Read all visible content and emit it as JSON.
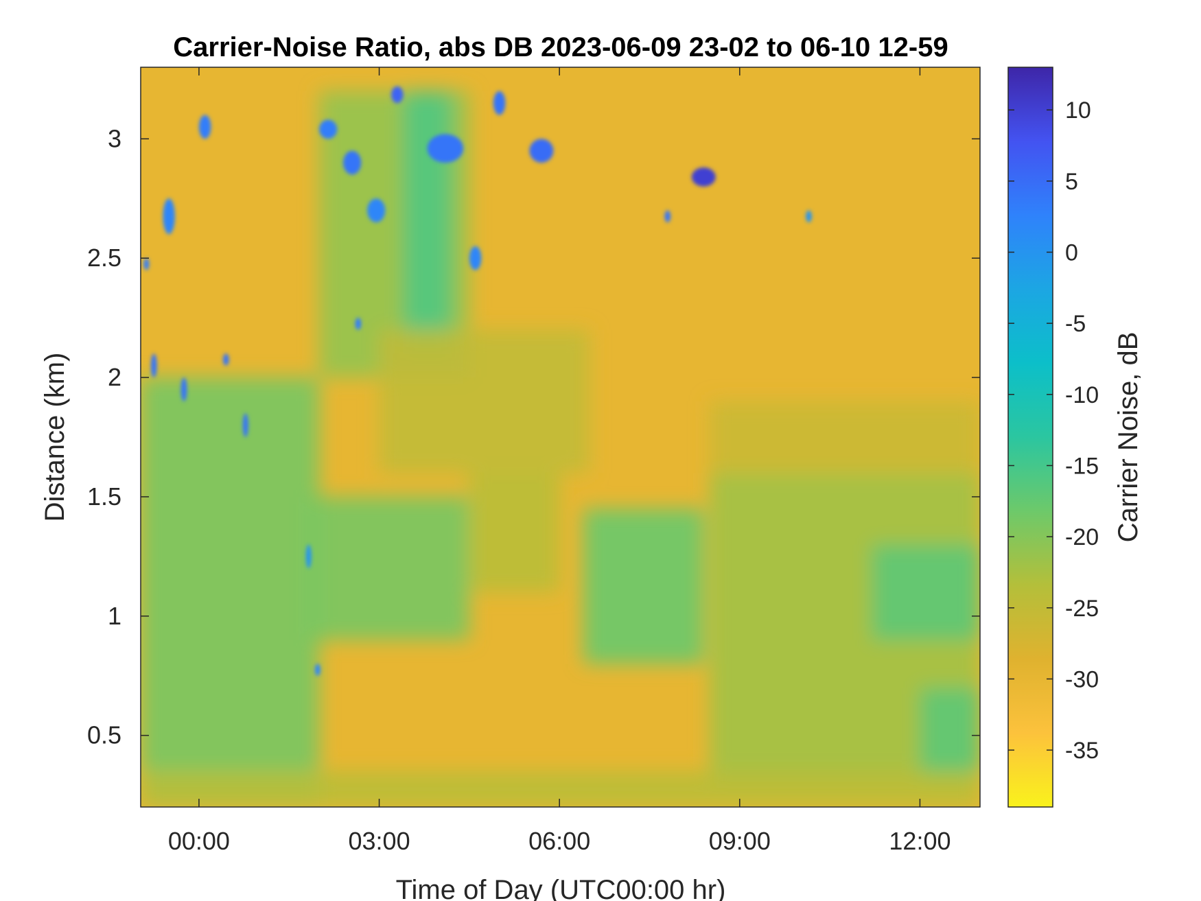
{
  "chart_data": {
    "type": "heatmap",
    "title": "Carrier-Noise Ratio, abs DB 2023-06-09 23-02 to 06-10 12-59",
    "xlabel": "Time of Day (UTC00:00 hr)",
    "ylabel": "Distance (km)",
    "colorbar_label": "Carrier Noise, dB",
    "x_unit": "hours since 2023-06-10 00:00 UTC",
    "xlim": [
      -0.97,
      13.0
    ],
    "ylim": [
      0.2,
      3.3
    ],
    "clim": [
      -39,
      13
    ],
    "x_ticks": [
      {
        "value": 0,
        "label": "00:00"
      },
      {
        "value": 3,
        "label": "03:00"
      },
      {
        "value": 6,
        "label": "06:00"
      },
      {
        "value": 9,
        "label": "09:00"
      },
      {
        "value": 12,
        "label": "12:00"
      }
    ],
    "y_ticks": [
      {
        "value": 0.5,
        "label": "0.5"
      },
      {
        "value": 1,
        "label": "1"
      },
      {
        "value": 1.5,
        "label": "1.5"
      },
      {
        "value": 2,
        "label": "2"
      },
      {
        "value": 2.5,
        "label": "2.5"
      },
      {
        "value": 3,
        "label": "3"
      }
    ],
    "colorbar_ticks": [
      {
        "value": 10,
        "label": "10"
      },
      {
        "value": 5,
        "label": "5"
      },
      {
        "value": 0,
        "label": "0"
      },
      {
        "value": -5,
        "label": "-5"
      },
      {
        "value": -10,
        "label": "-10"
      },
      {
        "value": -15,
        "label": "-15"
      },
      {
        "value": -20,
        "label": "-20"
      },
      {
        "value": -25,
        "label": "-25"
      },
      {
        "value": -30,
        "label": "-30"
      },
      {
        "value": -35,
        "label": "-35"
      }
    ],
    "colormap": [
      "#3e26a8",
      "#4353f1",
      "#2f82fb",
      "#1ca6e3",
      "#0cbfc9",
      "#2bc6a0",
      "#6dc96a",
      "#b4bf3a",
      "#dfb22f",
      "#fcc23c",
      "#f9f21c"
    ],
    "background_value": -30,
    "regions": [
      {
        "x": [
          -0.97,
          2.0
        ],
        "y": [
          0.2,
          2.0
        ],
        "value": -19
      },
      {
        "x": [
          1.8,
          4.5
        ],
        "y": [
          0.9,
          1.5
        ],
        "value": -19
      },
      {
        "x": [
          2.0,
          4.5
        ],
        "y": [
          2.0,
          3.2
        ],
        "value": -21
      },
      {
        "x": [
          3.4,
          4.2
        ],
        "y": [
          2.1,
          3.2
        ],
        "value": -16
      },
      {
        "x": [
          3.0,
          6.5
        ],
        "y": [
          1.6,
          2.2
        ],
        "value": -25
      },
      {
        "x": [
          6.4,
          8.4
        ],
        "y": [
          0.8,
          1.45
        ],
        "value": -18
      },
      {
        "x": [
          8.5,
          13.0
        ],
        "y": [
          0.3,
          1.6
        ],
        "value": -22
      },
      {
        "x": [
          11.2,
          13.0
        ],
        "y": [
          0.9,
          1.3
        ],
        "value": -17
      },
      {
        "x": [
          12.0,
          13.0
        ],
        "y": [
          0.3,
          0.7
        ],
        "value": -17
      },
      {
        "x": [
          -0.97,
          13.0
        ],
        "y": [
          0.2,
          0.35
        ],
        "value": -24
      },
      {
        "x": [
          4.5,
          6.0
        ],
        "y": [
          1.1,
          1.6
        ],
        "value": -24
      },
      {
        "x": [
          8.5,
          13.0
        ],
        "y": [
          1.6,
          1.9
        ],
        "value": -26
      }
    ],
    "clouds": [
      {
        "x": [
          -0.6,
          -0.4
        ],
        "y": [
          2.6,
          2.75
        ],
        "value": 2
      },
      {
        "x": [
          -0.9,
          -0.85
        ],
        "y": [
          2.45,
          2.5
        ],
        "value": 3
      },
      {
        "x": [
          -0.8,
          -0.7
        ],
        "y": [
          2.0,
          2.1
        ],
        "value": 4
      },
      {
        "x": [
          -0.3,
          -0.2
        ],
        "y": [
          1.9,
          2.0
        ],
        "value": 4
      },
      {
        "x": [
          0.4,
          0.5
        ],
        "y": [
          2.05,
          2.1
        ],
        "value": 4
      },
      {
        "x": [
          0.75,
          0.8
        ],
        "y": [
          1.75,
          1.85
        ],
        "value": 4
      },
      {
        "x": [
          0.0,
          0.2
        ],
        "y": [
          3.0,
          3.1
        ],
        "value": 3
      },
      {
        "x": [
          2.0,
          2.3
        ],
        "y": [
          3.0,
          3.08
        ],
        "value": 3
      },
      {
        "x": [
          2.4,
          2.7
        ],
        "y": [
          2.85,
          2.95
        ],
        "value": 4
      },
      {
        "x": [
          2.8,
          3.1
        ],
        "y": [
          2.65,
          2.75
        ],
        "value": 2
      },
      {
        "x": [
          3.2,
          3.4
        ],
        "y": [
          3.15,
          3.22
        ],
        "value": 6
      },
      {
        "x": [
          3.8,
          4.4
        ],
        "y": [
          2.9,
          3.02
        ],
        "value": 4
      },
      {
        "x": [
          4.5,
          4.7
        ],
        "y": [
          2.45,
          2.55
        ],
        "value": 2
      },
      {
        "x": [
          4.9,
          5.1
        ],
        "y": [
          3.1,
          3.2
        ],
        "value": 4
      },
      {
        "x": [
          5.5,
          5.9
        ],
        "y": [
          2.9,
          3.0
        ],
        "value": 5
      },
      {
        "x": [
          8.2,
          8.6
        ],
        "y": [
          2.8,
          2.88
        ],
        "value": 10
      },
      {
        "x": [
          7.75,
          7.85
        ],
        "y": [
          2.65,
          2.7
        ],
        "value": 4
      },
      {
        "x": [
          1.8,
          1.85
        ],
        "y": [
          1.2,
          1.3
        ],
        "value": 0
      },
      {
        "x": [
          1.95,
          2.0
        ],
        "y": [
          0.75,
          0.8
        ],
        "value": 2
      },
      {
        "x": [
          2.6,
          2.7
        ],
        "y": [
          2.2,
          2.25
        ],
        "value": 3
      },
      {
        "x": [
          10.1,
          10.2
        ],
        "y": [
          2.65,
          2.7
        ],
        "value": 0
      }
    ]
  }
}
